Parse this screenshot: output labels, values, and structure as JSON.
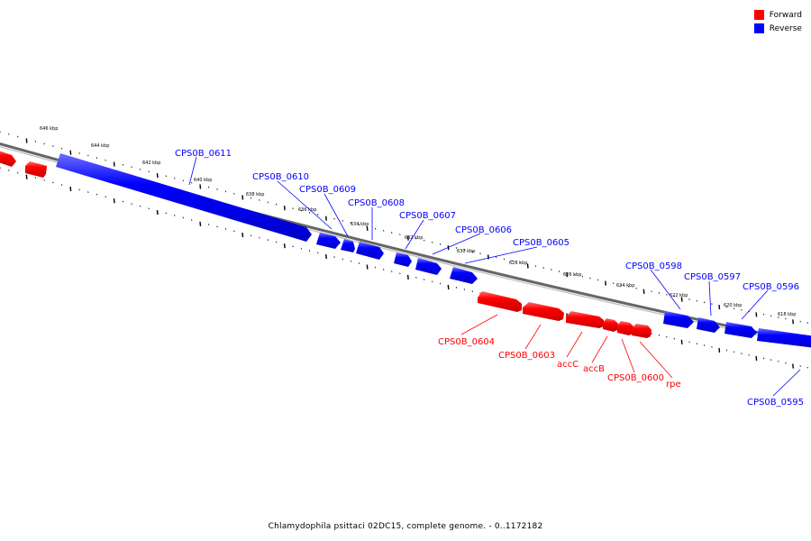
{
  "legend": [
    {
      "label": "Forward",
      "color": "#ff0000"
    },
    {
      "label": "Reverse",
      "color": "#0000ff"
    }
  ],
  "caption": "Chlamydophila psittaci 02DC15, complete genome. - 0..1172182",
  "colors": {
    "forward": "#ff0000",
    "reverse": "#0000ff",
    "backbone": "#777777"
  },
  "scale_labels": [
    "646 kbp",
    "644 kbp",
    "642 kbp",
    "640 kbp",
    "638 kbp",
    "636 kbp",
    "634 kbp",
    "632 kbp",
    "630 kbp",
    "628 kbp",
    "626 kbp",
    "624 kbp",
    "622 kbp",
    "620 kbp",
    "618 kbp"
  ],
  "genes": [
    {
      "name": "CPS0B_0611",
      "strand": "reverse"
    },
    {
      "name": "CPS0B_0610",
      "strand": "reverse"
    },
    {
      "name": "CPS0B_0609",
      "strand": "reverse"
    },
    {
      "name": "CPS0B_0608",
      "strand": "reverse"
    },
    {
      "name": "CPS0B_0607",
      "strand": "reverse"
    },
    {
      "name": "CPS0B_0606",
      "strand": "reverse"
    },
    {
      "name": "CPS0B_0605",
      "strand": "reverse"
    },
    {
      "name": "CPS0B_0604",
      "strand": "forward"
    },
    {
      "name": "CPS0B_0603",
      "strand": "forward"
    },
    {
      "name": "accC",
      "strand": "forward"
    },
    {
      "name": "accB",
      "strand": "forward"
    },
    {
      "name": "CPS0B_0600",
      "strand": "forward"
    },
    {
      "name": "rpe",
      "strand": "forward"
    },
    {
      "name": "CPS0B_0598",
      "strand": "reverse"
    },
    {
      "name": "CPS0B_0597",
      "strand": "reverse"
    },
    {
      "name": "CPS0B_0596",
      "strand": "reverse"
    },
    {
      "name": "CPS0B_0595",
      "strand": "reverse"
    }
  ]
}
